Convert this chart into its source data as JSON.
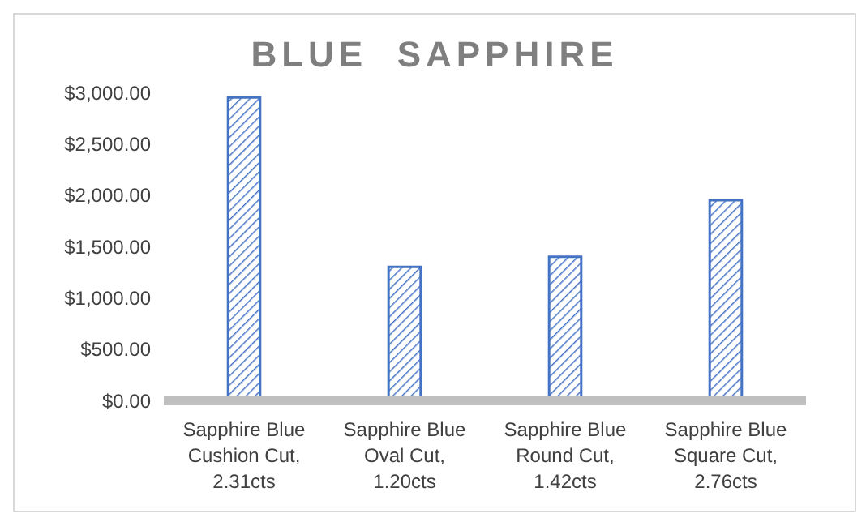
{
  "chart_data": {
    "type": "bar",
    "title": "BLUE  SAPPHIRE",
    "categories": [
      "Sapphire Blue Cushion Cut, 2.31cts",
      "Sapphire Blue Oval Cut, 1.20cts",
      "Sapphire Blue Round Cut, 1.42cts",
      "Sapphire Blue Square Cut, 2.76cts"
    ],
    "values": [
      2950,
      1300,
      1400,
      1950
    ],
    "color": "#4472c4",
    "ylim": [
      0,
      3000
    ],
    "yticks": [
      {
        "value": 0,
        "label": "$0.00"
      },
      {
        "value": 500,
        "label": "$500.00"
      },
      {
        "value": 1000,
        "label": "$1,000.00"
      },
      {
        "value": 1500,
        "label": "$1,500.00"
      },
      {
        "value": 2000,
        "label": "$2,000.00"
      },
      {
        "value": 2500,
        "label": "$2,500.00"
      },
      {
        "value": 3000,
        "label": "$3,000.00"
      }
    ],
    "grid": false,
    "legend": false
  }
}
